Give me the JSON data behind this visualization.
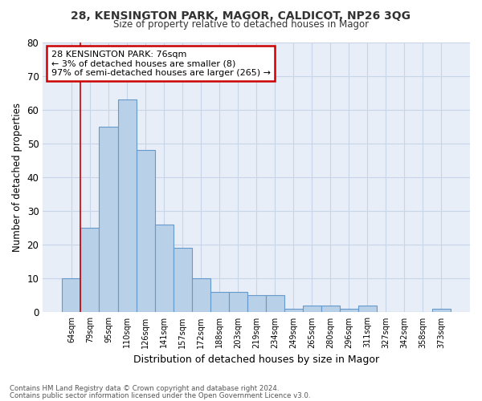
{
  "title1": "28, KENSINGTON PARK, MAGOR, CALDICOT, NP26 3QG",
  "title2": "Size of property relative to detached houses in Magor",
  "xlabel": "Distribution of detached houses by size in Magor",
  "ylabel": "Number of detached properties",
  "categories": [
    "64sqm",
    "79sqm",
    "95sqm",
    "110sqm",
    "126sqm",
    "141sqm",
    "157sqm",
    "172sqm",
    "188sqm",
    "203sqm",
    "219sqm",
    "234sqm",
    "249sqm",
    "265sqm",
    "280sqm",
    "296sqm",
    "311sqm",
    "327sqm",
    "342sqm",
    "358sqm",
    "373sqm"
  ],
  "values": [
    10,
    25,
    55,
    63,
    48,
    26,
    19,
    10,
    6,
    6,
    5,
    5,
    1,
    2,
    2,
    1,
    2,
    0,
    0,
    0,
    1
  ],
  "bar_color": "#b8d0e8",
  "bar_edge_color": "#6699cc",
  "annotation_text": "28 KENSINGTON PARK: 76sqm\n← 3% of detached houses are smaller (8)\n97% of semi-detached houses are larger (265) →",
  "annotation_box_color": "#ffffff",
  "annotation_box_edge_color": "#cc0000",
  "property_line_color": "#cc0000",
  "property_line_x": 0,
  "ylim": [
    0,
    80
  ],
  "yticks": [
    0,
    10,
    20,
    30,
    40,
    50,
    60,
    70,
    80
  ],
  "grid_color": "#c8d4e8",
  "bg_color": "#e8eef8",
  "footer1": "Contains HM Land Registry data © Crown copyright and database right 2024.",
  "footer2": "Contains public sector information licensed under the Open Government Licence v3.0."
}
